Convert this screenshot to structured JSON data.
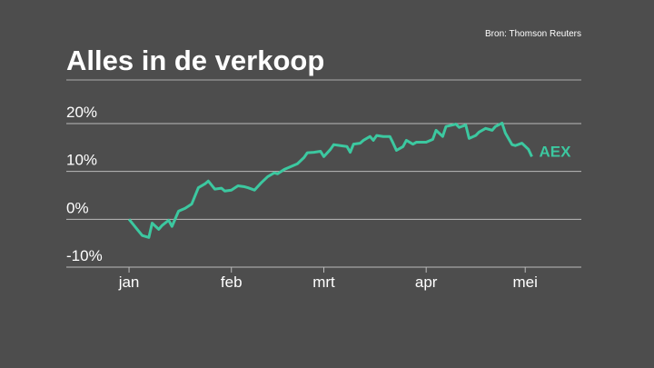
{
  "chart_data": {
    "type": "line",
    "title": "Alles in de verkoop",
    "source": "Bron: Thomson Reuters",
    "x": [
      0,
      2,
      4,
      6,
      7,
      9,
      10,
      12,
      13,
      15,
      17,
      19,
      21,
      23,
      24,
      26,
      28,
      29,
      31,
      33,
      35,
      36,
      38,
      40,
      42,
      44,
      45,
      47,
      49,
      51,
      53,
      54,
      56,
      58,
      59,
      61,
      62,
      64,
      66,
      67,
      68,
      70,
      71,
      73,
      74,
      75,
      77,
      79,
      80,
      81,
      83,
      84,
      86,
      87,
      89,
      90,
      92,
      93,
      95,
      96,
      98,
      99,
      100,
      102,
      103,
      105,
      106,
      108,
      110,
      111,
      113,
      114,
      116,
      117,
      119,
      121,
      122
    ],
    "series": [
      {
        "name": "AEX",
        "color": "#3cc8a0",
        "values": [
          0,
          -1.7,
          -3.4,
          -3.8,
          -0.8,
          -2.1,
          -1.3,
          -0.2,
          -1.5,
          1.7,
          2.3,
          3.2,
          6.6,
          7.4,
          8.0,
          6.3,
          6.5,
          5.9,
          6.1,
          7.0,
          6.8,
          6.6,
          6.1,
          7.6,
          8.9,
          9.7,
          9.5,
          10.4,
          11.0,
          11.6,
          12.9,
          13.9,
          14.0,
          14.2,
          13.1,
          14.6,
          15.6,
          15.4,
          15.2,
          14.0,
          15.7,
          15.9,
          16.5,
          17.3,
          16.5,
          17.5,
          17.3,
          17.3,
          15.9,
          14.4,
          15.2,
          16.5,
          15.7,
          16.1,
          16.1,
          16.1,
          16.7,
          18.6,
          17.3,
          19.4,
          19.7,
          19.9,
          19.2,
          19.7,
          16.9,
          17.5,
          18.2,
          19.0,
          18.6,
          19.4,
          20.1,
          18.0,
          15.6,
          15.4,
          15.9,
          14.6,
          13.1
        ]
      }
    ],
    "xlim": [
      -19,
      137
    ],
    "xticks": [
      {
        "value": 0,
        "label": "jan"
      },
      {
        "value": 31,
        "label": "feb"
      },
      {
        "value": 59,
        "label": "mrt"
      },
      {
        "value": 90,
        "label": "apr"
      },
      {
        "value": 120,
        "label": "mei"
      }
    ],
    "ylim": [
      -10,
      20
    ],
    "yticks": [
      {
        "value": 20,
        "label": "20%"
      },
      {
        "value": 10,
        "label": "10%"
      },
      {
        "value": 0,
        "label": "0%"
      },
      {
        "value": -10,
        "label": "-10%"
      }
    ],
    "grid": true
  }
}
